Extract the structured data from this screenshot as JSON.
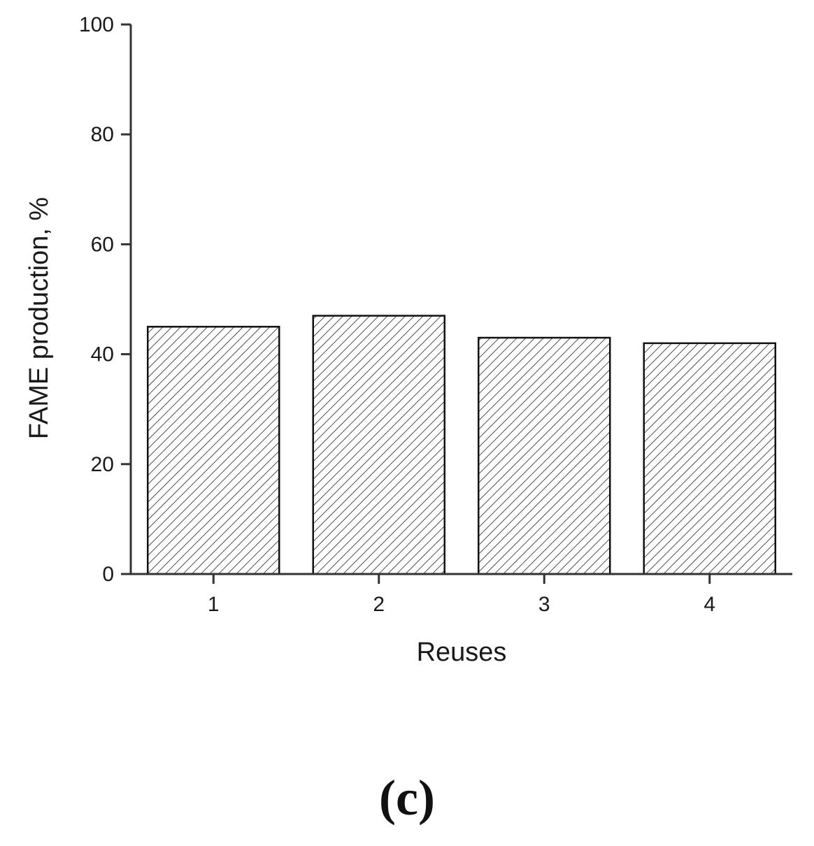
{
  "chart_data": {
    "type": "bar",
    "categories": [
      "1",
      "2",
      "3",
      "4"
    ],
    "values": [
      45,
      47,
      43,
      42
    ],
    "xlabel": "Reuses",
    "ylabel": "FAME production, %",
    "ylim": [
      0,
      100
    ],
    "yticks": [
      "0",
      "20",
      "40",
      "60",
      "80",
      "100"
    ],
    "bar_fill": "hatched",
    "colors": {
      "axis": "#333333",
      "bar_edge": "#111111",
      "hatch": "#222222"
    },
    "grid": false
  },
  "panel_label": "(c)"
}
